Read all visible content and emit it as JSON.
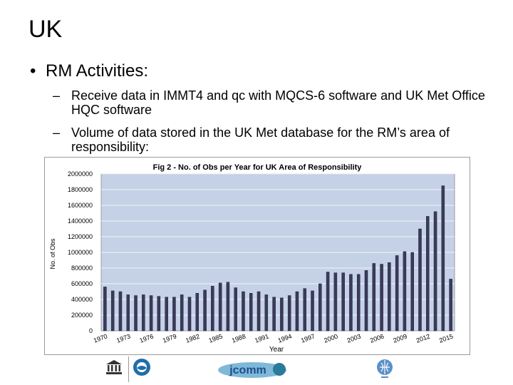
{
  "slide": {
    "title": "UK",
    "bullet": "RM Activities:",
    "subbullets": [
      "Receive data in IMMT4 and qc with MQCS-6 software and UK Met Office HQC software",
      "Volume of data stored in the UK Met database for the RM’s area of responsibility:"
    ]
  },
  "chart_data": {
    "type": "bar",
    "title": "Fig 2 - No. of Obs per Year for UK Area of Responsibility",
    "xlabel": "Year",
    "ylabel": "No. of Obs",
    "ylim": [
      0,
      2000000
    ],
    "yticks": [
      "0",
      "200000",
      "400000",
      "600000",
      "800000",
      "1000000",
      "1200000",
      "1400000",
      "1600000",
      "1800000",
      "2000000"
    ],
    "xtick_labels": [
      "1970",
      "1973",
      "1976",
      "1979",
      "1982",
      "1985",
      "1988",
      "1991",
      "1994",
      "1997",
      "2000",
      "2003",
      "2006",
      "2009",
      "2012",
      "2015"
    ],
    "categories": [
      1970,
      1971,
      1972,
      1973,
      1974,
      1975,
      1976,
      1977,
      1978,
      1979,
      1980,
      1981,
      1982,
      1983,
      1984,
      1985,
      1986,
      1987,
      1988,
      1989,
      1990,
      1991,
      1992,
      1993,
      1994,
      1995,
      1996,
      1997,
      1998,
      1999,
      2000,
      2001,
      2002,
      2003,
      2004,
      2005,
      2006,
      2007,
      2008,
      2009,
      2010,
      2011,
      2012,
      2013,
      2014,
      2015
    ],
    "values": [
      560000,
      510000,
      500000,
      460000,
      450000,
      460000,
      450000,
      440000,
      430000,
      430000,
      460000,
      430000,
      480000,
      520000,
      570000,
      610000,
      620000,
      550000,
      500000,
      480000,
      500000,
      460000,
      430000,
      420000,
      450000,
      500000,
      540000,
      510000,
      600000,
      750000,
      740000,
      740000,
      720000,
      720000,
      770000,
      860000,
      850000,
      870000,
      960000,
      1010000,
      1000000,
      1300000,
      1460000,
      1520000,
      1850000,
      660000
    ],
    "grid": true,
    "bar_color": "#3a3a5c",
    "plot_background": "#c5d1e6"
  },
  "logos": {
    "unesco": "unesco-logo-icon",
    "ioc": "ioc-logo-icon",
    "jcomm": "jcomm",
    "wmo": "wmo-logo-icon"
  }
}
